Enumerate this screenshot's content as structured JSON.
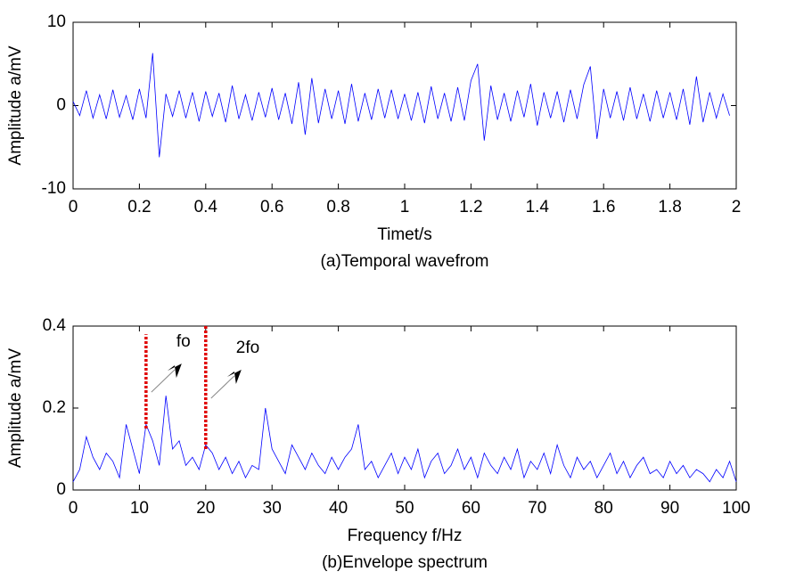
{
  "chart_data": [
    {
      "type": "line",
      "caption": "(a)Temporal wavefrom",
      "xlabel": "Timet/s",
      "ylabel": "Amplitude a/mV",
      "xlim": [
        0,
        2
      ],
      "xticks": [
        0,
        0.2,
        0.4,
        0.6,
        0.8,
        1,
        1.2,
        1.4,
        1.6,
        1.8,
        2
      ],
      "ylim": [
        -10,
        10
      ],
      "yticks": [
        -10,
        0,
        10
      ],
      "series": [
        {
          "color": "#0000ff",
          "x": [
            0,
            0.02,
            0.04,
            0.06,
            0.08,
            0.1,
            0.12,
            0.14,
            0.16,
            0.18,
            0.2,
            0.22,
            0.24,
            0.26,
            0.28,
            0.3,
            0.32,
            0.34,
            0.36,
            0.38,
            0.4,
            0.42,
            0.44,
            0.46,
            0.48,
            0.5,
            0.52,
            0.54,
            0.56,
            0.58,
            0.6,
            0.62,
            0.64,
            0.66,
            0.68,
            0.7,
            0.72,
            0.74,
            0.76,
            0.78,
            0.8,
            0.82,
            0.84,
            0.86,
            0.88,
            0.9,
            0.92,
            0.94,
            0.96,
            0.98,
            1,
            1.02,
            1.04,
            1.06,
            1.08,
            1.1,
            1.12,
            1.14,
            1.16,
            1.18,
            1.2,
            1.22,
            1.24,
            1.26,
            1.28,
            1.3,
            1.32,
            1.34,
            1.36,
            1.38,
            1.4,
            1.42,
            1.44,
            1.46,
            1.48,
            1.5,
            1.52,
            1.54,
            1.56,
            1.58,
            1.6,
            1.62,
            1.64,
            1.66,
            1.68,
            1.7,
            1.72,
            1.74,
            1.76,
            1.78,
            1.8,
            1.82,
            1.84,
            1.86,
            1.88,
            1.9,
            1.92,
            1.94,
            1.96,
            1.98
          ],
          "values": [
            0.5,
            -1.2,
            1.8,
            -1.5,
            1.3,
            -1.6,
            1.9,
            -1.4,
            1.2,
            -1.7,
            2.0,
            -1.5,
            6.3,
            -6.2,
            1.4,
            -1.3,
            1.8,
            -1.5,
            1.6,
            -1.9,
            1.7,
            -1.3,
            1.5,
            -2.0,
            2.4,
            -1.6,
            1.3,
            -1.8,
            1.6,
            -1.4,
            2.1,
            -1.7,
            1.5,
            -2.2,
            2.8,
            -3.5,
            3.3,
            -2.1,
            2.0,
            -1.6,
            1.8,
            -2.2,
            2.6,
            -1.9,
            1.5,
            -1.7,
            2.0,
            -1.5,
            1.9,
            -1.6,
            1.4,
            -1.8,
            1.6,
            -2.1,
            2.3,
            -1.6,
            1.5,
            -1.9,
            2.2,
            -1.8,
            3.0,
            5.0,
            -4.2,
            2.4,
            -1.7,
            1.5,
            -1.9,
            1.8,
            -1.4,
            2.6,
            -2.4,
            1.6,
            -1.5,
            1.7,
            -2.0,
            1.9,
            -1.6,
            2.5,
            4.7,
            -4.0,
            2.0,
            -1.5,
            1.7,
            -1.8,
            2.2,
            -1.6,
            1.4,
            -1.9,
            1.8,
            -1.5,
            1.6,
            -1.7,
            2.0,
            -2.3,
            3.5,
            -2.0,
            1.6,
            -1.5,
            1.4,
            -1.2
          ]
        }
      ]
    },
    {
      "type": "line",
      "caption": "(b)Envelope spectrum",
      "xlabel": "Frequency f/Hz",
      "ylabel": "Amplitude a/mV",
      "xlim": [
        0,
        100
      ],
      "xticks": [
        0,
        10,
        20,
        30,
        40,
        50,
        60,
        70,
        80,
        90,
        100
      ],
      "ylim": [
        0,
        0.4
      ],
      "yticks": [
        0,
        0.2,
        0.4
      ],
      "annotations": [
        {
          "text": "fo",
          "x": 11,
          "y_range": [
            0.15,
            0.38
          ]
        },
        {
          "text": "2fo",
          "x": 20,
          "y_range": [
            0.1,
            0.4
          ]
        }
      ],
      "series": [
        {
          "color": "#0000ff",
          "x": [
            0,
            1,
            2,
            3,
            4,
            5,
            6,
            7,
            8,
            9,
            10,
            11,
            12,
            13,
            14,
            15,
            16,
            17,
            18,
            19,
            20,
            21,
            22,
            23,
            24,
            25,
            26,
            27,
            28,
            29,
            30,
            31,
            32,
            33,
            34,
            35,
            36,
            37,
            38,
            39,
            40,
            41,
            42,
            43,
            44,
            45,
            46,
            47,
            48,
            49,
            50,
            51,
            52,
            53,
            54,
            55,
            56,
            57,
            58,
            59,
            60,
            61,
            62,
            63,
            64,
            65,
            66,
            67,
            68,
            69,
            70,
            71,
            72,
            73,
            74,
            75,
            76,
            77,
            78,
            79,
            80,
            81,
            82,
            83,
            84,
            85,
            86,
            87,
            88,
            89,
            90,
            91,
            92,
            93,
            94,
            95,
            96,
            97,
            98,
            99,
            100
          ],
          "values": [
            0.02,
            0.05,
            0.13,
            0.08,
            0.05,
            0.09,
            0.07,
            0.03,
            0.16,
            0.1,
            0.04,
            0.16,
            0.12,
            0.06,
            0.23,
            0.1,
            0.12,
            0.06,
            0.08,
            0.05,
            0.11,
            0.09,
            0.05,
            0.08,
            0.04,
            0.07,
            0.03,
            0.06,
            0.05,
            0.2,
            0.1,
            0.07,
            0.04,
            0.11,
            0.08,
            0.05,
            0.09,
            0.06,
            0.04,
            0.08,
            0.05,
            0.08,
            0.1,
            0.16,
            0.05,
            0.07,
            0.03,
            0.06,
            0.09,
            0.04,
            0.08,
            0.05,
            0.1,
            0.03,
            0.07,
            0.09,
            0.04,
            0.06,
            0.1,
            0.05,
            0.08,
            0.03,
            0.09,
            0.06,
            0.04,
            0.08,
            0.05,
            0.1,
            0.03,
            0.07,
            0.05,
            0.09,
            0.04,
            0.11,
            0.06,
            0.03,
            0.08,
            0.05,
            0.07,
            0.03,
            0.06,
            0.09,
            0.04,
            0.07,
            0.03,
            0.06,
            0.08,
            0.04,
            0.05,
            0.03,
            0.07,
            0.04,
            0.06,
            0.03,
            0.05,
            0.04,
            0.02,
            0.05,
            0.03,
            0.07,
            0.02
          ]
        }
      ]
    }
  ]
}
